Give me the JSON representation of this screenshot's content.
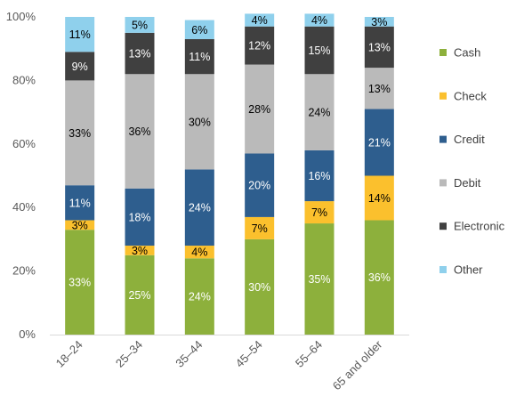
{
  "chart_data": {
    "type": "bar",
    "stacked": true,
    "title": "",
    "xlabel": "",
    "ylabel": "",
    "ylim": [
      0,
      100
    ],
    "yticks": [
      "0%",
      "20%",
      "40%",
      "60%",
      "80%",
      "100%"
    ],
    "grid": false,
    "legend_position": "right",
    "categories": [
      "18–24",
      "25–34",
      "35–44",
      "45–54",
      "55–64",
      "65 and older"
    ],
    "series": [
      {
        "name": "Cash",
        "color": "#8DB03C",
        "label_color": "#ffffff",
        "values": [
          33,
          25,
          24,
          30,
          35,
          36
        ],
        "labels": [
          "33%",
          "25%",
          "24%",
          "30%",
          "35%",
          "36%"
        ]
      },
      {
        "name": "Check",
        "color": "#FBC02D",
        "label_color": "#000000",
        "values": [
          3,
          3,
          4,
          7,
          7,
          14
        ],
        "labels": [
          "3%",
          "3%",
          "4%",
          "7%",
          "7%",
          "14%"
        ]
      },
      {
        "name": "Credit",
        "color": "#2E5E8E",
        "label_color": "#ffffff",
        "values": [
          11,
          18,
          24,
          20,
          16,
          21
        ],
        "labels": [
          "11%",
          "18%",
          "24%",
          "20%",
          "16%",
          "21%"
        ]
      },
      {
        "name": "Debit",
        "color": "#BABABA",
        "label_color": "#000000",
        "values": [
          33,
          36,
          30,
          28,
          24,
          13
        ],
        "labels": [
          "33%",
          "36%",
          "30%",
          "28%",
          "24%",
          "13%"
        ]
      },
      {
        "name": "Electronic",
        "color": "#404040",
        "label_color": "#ffffff",
        "values": [
          9,
          13,
          11,
          12,
          15,
          13
        ],
        "labels": [
          "9%",
          "13%",
          "11%",
          "12%",
          "15%",
          "13%"
        ]
      },
      {
        "name": "Other",
        "color": "#8FD0EC",
        "label_color": "#000000",
        "values": [
          11,
          5,
          6,
          4,
          4,
          3
        ],
        "labels": [
          "11%",
          "5%",
          "6%",
          "4%",
          "4%",
          "3%"
        ]
      }
    ]
  }
}
